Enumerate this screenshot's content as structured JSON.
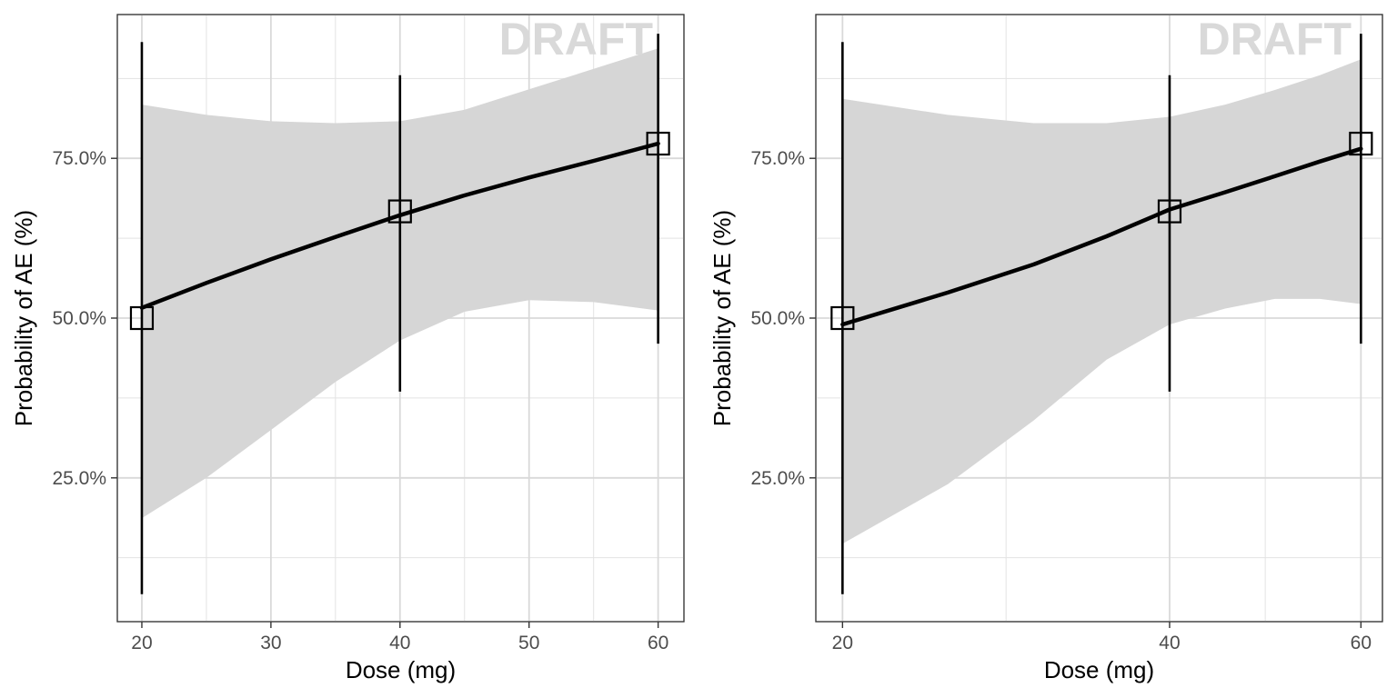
{
  "chart_data": [
    {
      "type": "line",
      "title": "",
      "xlabel": "Dose (mg)",
      "ylabel": "Probability of AE (%)",
      "x_scale": "linear",
      "xlim": [
        18.1,
        62
      ],
      "ylim": [
        0.025,
        0.975
      ],
      "x_ticks": [
        20,
        30,
        40,
        50,
        60
      ],
      "x_tick_labels": [
        "20",
        "30",
        "40",
        "50",
        "60"
      ],
      "y_ticks": [
        0.25,
        0.5,
        0.75
      ],
      "y_tick_labels": [
        "25.0%",
        "50.0%",
        "75.0%"
      ],
      "grid": true,
      "legend": "none",
      "watermark": "DRAFT",
      "fit_line": {
        "x": [
          20,
          25,
          30,
          35,
          40,
          45,
          50,
          55,
          60
        ],
        "y": [
          0.516,
          0.555,
          0.592,
          0.627,
          0.661,
          0.692,
          0.72,
          0.746,
          0.773
        ]
      },
      "confidence_band": {
        "x": [
          20,
          25,
          30,
          35,
          40,
          45,
          50,
          55,
          60
        ],
        "lower": [
          0.187,
          0.25,
          0.325,
          0.4,
          0.465,
          0.51,
          0.528,
          0.525,
          0.512
        ],
        "upper": [
          0.834,
          0.818,
          0.808,
          0.805,
          0.808,
          0.826,
          0.858,
          0.89,
          0.922
        ]
      },
      "observed": {
        "x": [
          20,
          40,
          60
        ],
        "y": [
          0.5,
          0.667,
          0.773
        ],
        "lower": [
          0.068,
          0.385,
          0.46
        ],
        "upper": [
          0.932,
          0.88,
          0.945
        ]
      }
    },
    {
      "type": "line",
      "title": "",
      "xlabel": "Dose (mg)",
      "ylabel": "Probability of AE (%)",
      "x_scale": "log",
      "xlim": [
        18.9,
        62.8
      ],
      "ylim": [
        0.025,
        0.975
      ],
      "x_ticks": [
        20,
        40,
        60
      ],
      "x_tick_labels": [
        "20",
        "40",
        "60"
      ],
      "y_ticks": [
        0.25,
        0.5,
        0.75
      ],
      "y_tick_labels": [
        "25.0%",
        "50.0%",
        "75.0%"
      ],
      "grid": true,
      "legend": "none",
      "watermark": "DRAFT",
      "fit_line": {
        "x": [
          20,
          25,
          30,
          35,
          40,
          45,
          50,
          55,
          60
        ],
        "y": [
          0.49,
          0.54,
          0.584,
          0.628,
          0.67,
          0.697,
          0.722,
          0.745,
          0.765
        ]
      },
      "confidence_band": {
        "x": [
          20,
          25,
          30,
          35,
          40,
          45,
          50,
          55,
          60
        ],
        "lower": [
          0.147,
          0.24,
          0.34,
          0.435,
          0.49,
          0.515,
          0.53,
          0.53,
          0.522
        ],
        "upper": [
          0.843,
          0.818,
          0.805,
          0.805,
          0.815,
          0.834,
          0.857,
          0.88,
          0.905
        ]
      },
      "observed": {
        "x": [
          20,
          40,
          60
        ],
        "y": [
          0.5,
          0.667,
          0.773
        ],
        "lower": [
          0.068,
          0.385,
          0.46
        ],
        "upper": [
          0.932,
          0.88,
          0.945
        ]
      }
    }
  ]
}
